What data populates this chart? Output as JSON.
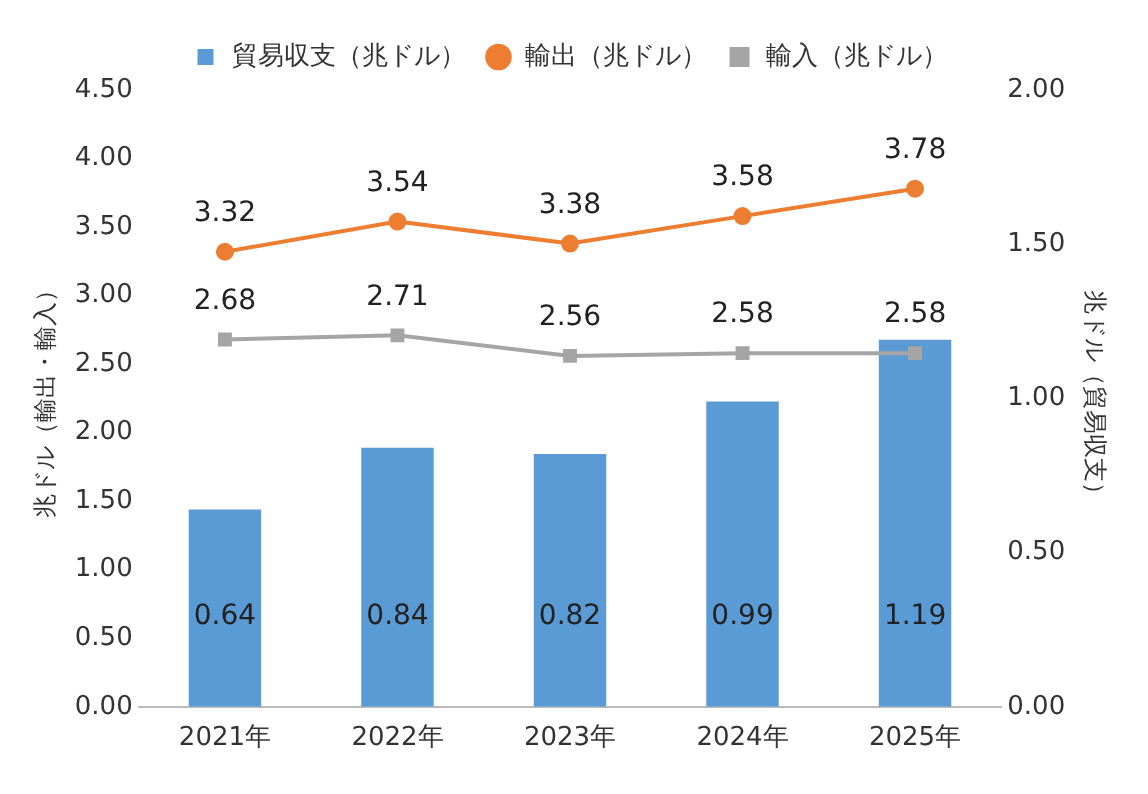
{
  "chart_data": {
    "type": "bar",
    "categories": [
      "2021年",
      "2022年",
      "2023年",
      "2024年",
      "2025年"
    ],
    "series": [
      {
        "name": "貿易収支（兆ドル）",
        "axis": "y2",
        "color": "#5b9bd5",
        "values": [
          0.64,
          0.84,
          0.82,
          0.99,
          1.19
        ]
      },
      {
        "name": "輸出（兆ドル）",
        "type": "line",
        "axis": "y",
        "marker": "circle",
        "color": "#ed7d31",
        "values": [
          3.32,
          3.54,
          3.38,
          3.58,
          3.78
        ]
      },
      {
        "name": "輸入（兆ドル）",
        "type": "line",
        "axis": "y",
        "marker": "square",
        "color": "#a5a5a5",
        "values": [
          2.68,
          2.71,
          2.56,
          2.58,
          2.58
        ]
      }
    ],
    "ylabel": "兆ドル（輸出・輸入）",
    "y2label": "兆ドル（貿易収支）",
    "ylim": [
      0,
      4.5
    ],
    "yticks": [
      {
        "value": 0,
        "label": "0.00"
      },
      {
        "value": 0.5,
        "label": "0.50"
      },
      {
        "value": 1,
        "label": "1.00"
      },
      {
        "value": 1.5,
        "label": "1.50"
      },
      {
        "value": 2,
        "label": "2.00"
      },
      {
        "value": 2.5,
        "label": "2.50"
      },
      {
        "value": 3,
        "label": "3.00"
      },
      {
        "value": 3.5,
        "label": "3.50"
      },
      {
        "value": 4,
        "label": "4.00"
      },
      {
        "value": 4.5,
        "label": "4.50"
      }
    ],
    "y2lim": [
      0,
      2
    ],
    "y2ticks": [
      {
        "value": 0,
        "label": "0.00"
      },
      {
        "value": 0.5,
        "label": "0.50"
      },
      {
        "value": 1,
        "label": "1.00"
      },
      {
        "value": 1.5,
        "label": "1.50"
      },
      {
        "value": 2,
        "label": "2.00"
      }
    ],
    "data_labels": true,
    "grid": false,
    "legend": "top"
  }
}
